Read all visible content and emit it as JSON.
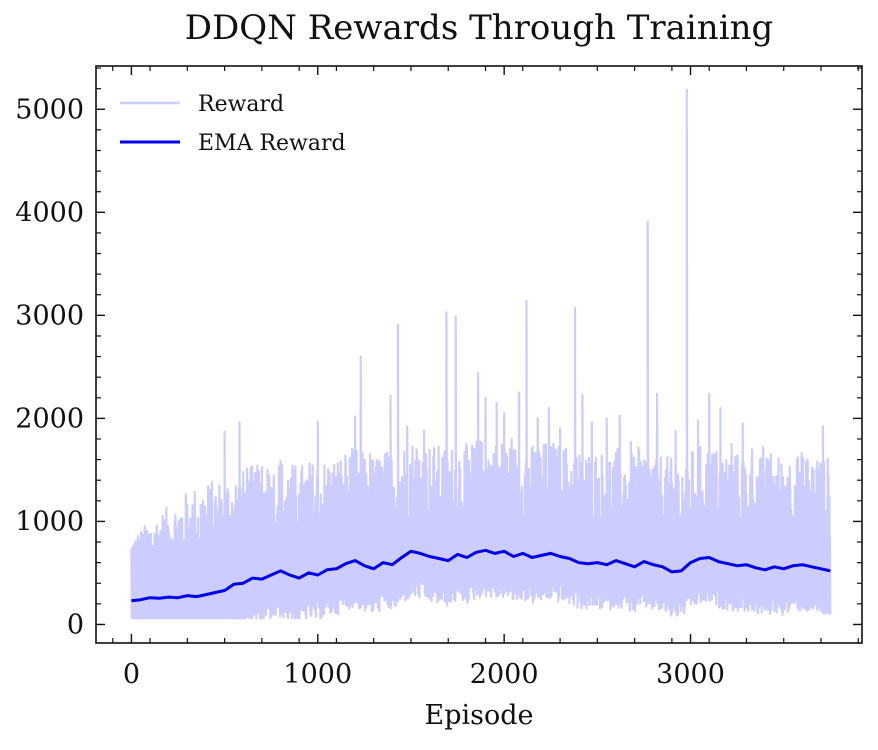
{
  "chart_data": {
    "type": "line",
    "title": "DDQN Rewards Through Training",
    "xlabel": "Episode",
    "ylabel": "",
    "xlim": [
      -190,
      3920
    ],
    "ylim": [
      -180,
      5420
    ],
    "xticks": [
      0,
      1000,
      2000,
      3000
    ],
    "yticks": [
      0,
      1000,
      2000,
      3000,
      4000,
      5000
    ],
    "grid": false,
    "legend_position": "top-left",
    "series": [
      {
        "name": "Reward",
        "color": "#ccccff",
        "episodes": [
          0,
          3750
        ],
        "approx_mean": 520,
        "approx_min": 60,
        "spikes": [
          [
            5,
            520
          ],
          [
            30,
            640
          ],
          [
            55,
            720
          ],
          [
            70,
            760
          ],
          [
            90,
            500
          ],
          [
            120,
            430
          ],
          [
            165,
            300
          ],
          [
            200,
            650
          ],
          [
            260,
            560
          ],
          [
            310,
            940
          ],
          [
            350,
            880
          ],
          [
            420,
            1100
          ],
          [
            455,
            1140
          ],
          [
            500,
            1870
          ],
          [
            540,
            1150
          ],
          [
            580,
            1960
          ],
          [
            620,
            1510
          ],
          [
            700,
            1530
          ],
          [
            730,
            1500
          ],
          [
            800,
            1590
          ],
          [
            850,
            1310
          ],
          [
            900,
            1260
          ],
          [
            940,
            1400
          ],
          [
            1000,
            1970
          ],
          [
            1050,
            1350
          ],
          [
            1100,
            1430
          ],
          [
            1150,
            1590
          ],
          [
            1200,
            2020
          ],
          [
            1230,
            2600
          ],
          [
            1280,
            1650
          ],
          [
            1330,
            1580
          ],
          [
            1390,
            2220
          ],
          [
            1430,
            2910
          ],
          [
            1480,
            1920
          ],
          [
            1530,
            1700
          ],
          [
            1570,
            1880
          ],
          [
            1620,
            1500
          ],
          [
            1690,
            3030
          ],
          [
            1740,
            2990
          ],
          [
            1800,
            1700
          ],
          [
            1860,
            2440
          ],
          [
            1900,
            2200
          ],
          [
            1960,
            2150
          ],
          [
            2000,
            2050
          ],
          [
            2040,
            1800
          ],
          [
            2080,
            2250
          ],
          [
            2120,
            3140
          ],
          [
            2180,
            2000
          ],
          [
            2240,
            2100
          ],
          [
            2300,
            1900
          ],
          [
            2380,
            3070
          ],
          [
            2420,
            2230
          ],
          [
            2470,
            1960
          ],
          [
            2550,
            2000
          ],
          [
            2620,
            2030
          ],
          [
            2680,
            1770
          ],
          [
            2720,
            1720
          ],
          [
            2770,
            3910
          ],
          [
            2820,
            2240
          ],
          [
            2870,
            1500
          ],
          [
            2920,
            1880
          ],
          [
            2980,
            5190
          ],
          [
            3040,
            1980
          ],
          [
            3100,
            2240
          ],
          [
            3160,
            2100
          ],
          [
            3220,
            1750
          ],
          [
            3280,
            1950
          ],
          [
            3330,
            1700
          ],
          [
            3390,
            1720
          ],
          [
            3430,
            1650
          ],
          [
            3490,
            1310
          ],
          [
            3520,
            1420
          ],
          [
            3570,
            1600
          ],
          [
            3620,
            1580
          ],
          [
            3680,
            1580
          ],
          [
            3710,
            1920
          ],
          [
            3745,
            1240
          ]
        ]
      },
      {
        "name": "EMA Reward",
        "color": "#0000ee",
        "x": [
          0,
          50,
          100,
          150,
          200,
          250,
          300,
          350,
          400,
          450,
          500,
          550,
          600,
          650,
          700,
          750,
          800,
          850,
          900,
          950,
          1000,
          1050,
          1100,
          1150,
          1200,
          1250,
          1300,
          1350,
          1400,
          1450,
          1500,
          1550,
          1600,
          1650,
          1700,
          1750,
          1800,
          1850,
          1900,
          1950,
          2000,
          2050,
          2100,
          2150,
          2200,
          2250,
          2300,
          2350,
          2400,
          2450,
          2500,
          2550,
          2600,
          2650,
          2700,
          2750,
          2800,
          2850,
          2900,
          2950,
          3000,
          3050,
          3100,
          3150,
          3200,
          3250,
          3300,
          3350,
          3400,
          3450,
          3500,
          3550,
          3600,
          3650,
          3700,
          3750
        ],
        "values": [
          230,
          240,
          260,
          255,
          265,
          260,
          280,
          270,
          290,
          310,
          330,
          390,
          400,
          450,
          440,
          480,
          520,
          480,
          450,
          500,
          480,
          530,
          540,
          590,
          620,
          570,
          540,
          600,
          580,
          650,
          710,
          690,
          660,
          640,
          620,
          680,
          650,
          700,
          720,
          690,
          710,
          660,
          690,
          650,
          670,
          690,
          660,
          640,
          600,
          590,
          600,
          580,
          620,
          590,
          560,
          610,
          580,
          560,
          510,
          520,
          600,
          640,
          650,
          610,
          590,
          570,
          580,
          550,
          530,
          560,
          540,
          570,
          580,
          560,
          540,
          520
        ]
      }
    ]
  }
}
